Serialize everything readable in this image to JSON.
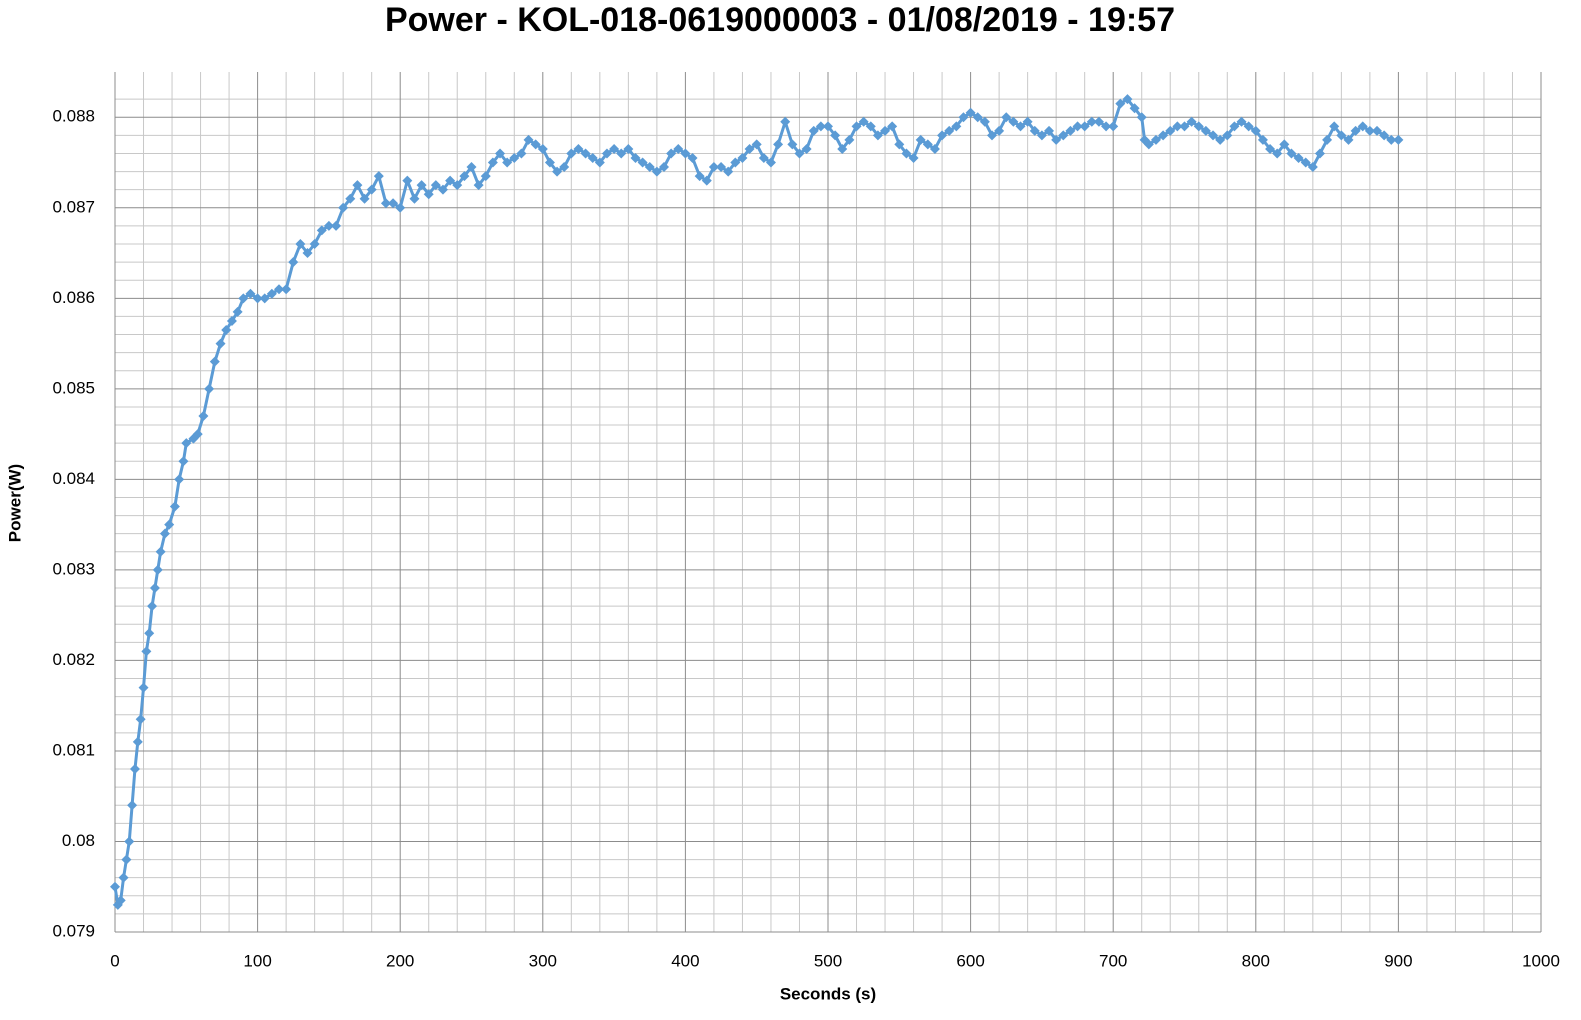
{
  "chart_data": {
    "type": "line",
    "title": "Power - KOL-018-0619000003 - 01/08/2019 - 19:57",
    "x_label": "Seconds (s)",
    "y_label": "Power(W)",
    "xlim": [
      0,
      1000
    ],
    "ylim": [
      0.079,
      0.0885
    ],
    "xticks": [
      0,
      100,
      200,
      300,
      400,
      500,
      600,
      700,
      800,
      900,
      1000
    ],
    "yticks": [
      0.079,
      0.08,
      0.081,
      0.082,
      0.083,
      0.084,
      0.085,
      0.086,
      0.087,
      0.088
    ],
    "grid": true,
    "minor_grid_divisions": 5,
    "marker": "diamond",
    "x": [
      0,
      2,
      4,
      6,
      8,
      10,
      12,
      14,
      16,
      18,
      20,
      22,
      24,
      26,
      28,
      30,
      32,
      35,
      38,
      42,
      45,
      48,
      50,
      55,
      58,
      62,
      66,
      70,
      74,
      78,
      82,
      86,
      90,
      95,
      100,
      105,
      110,
      115,
      120,
      125,
      130,
      135,
      140,
      145,
      150,
      155,
      160,
      165,
      170,
      175,
      180,
      185,
      190,
      195,
      200,
      205,
      210,
      215,
      220,
      225,
      230,
      235,
      240,
      245,
      250,
      255,
      260,
      265,
      270,
      275,
      280,
      285,
      290,
      295,
      300,
      305,
      310,
      315,
      320,
      325,
      330,
      335,
      340,
      345,
      350,
      355,
      360,
      365,
      370,
      375,
      380,
      385,
      390,
      395,
      400,
      405,
      410,
      415,
      420,
      425,
      430,
      435,
      440,
      445,
      450,
      455,
      460,
      465,
      470,
      475,
      480,
      485,
      490,
      495,
      500,
      505,
      510,
      515,
      520,
      525,
      530,
      535,
      540,
      545,
      550,
      555,
      560,
      565,
      570,
      575,
      580,
      585,
      590,
      595,
      600,
      605,
      610,
      615,
      620,
      625,
      630,
      635,
      640,
      645,
      650,
      655,
      660,
      665,
      670,
      675,
      680,
      685,
      690,
      695,
      700,
      705,
      710,
      715,
      720,
      722,
      725,
      730,
      735,
      740,
      745,
      750,
      755,
      760,
      765,
      770,
      775,
      780,
      785,
      790,
      795,
      800,
      805,
      810,
      815,
      820,
      825,
      830,
      835,
      840,
      845,
      850,
      855,
      860,
      865,
      870,
      875,
      880,
      885,
      890,
      895,
      900
    ],
    "series": [
      {
        "name": "Power",
        "color": "#5b9bd5",
        "values": [
          0.0795,
          0.0793,
          0.07935,
          0.0796,
          0.0798,
          0.08,
          0.0804,
          0.0808,
          0.0811,
          0.08135,
          0.0817,
          0.0821,
          0.0823,
          0.0826,
          0.0828,
          0.083,
          0.0832,
          0.0834,
          0.0835,
          0.0837,
          0.084,
          0.0842,
          0.0844,
          0.08445,
          0.0845,
          0.0847,
          0.085,
          0.0853,
          0.0855,
          0.08565,
          0.08575,
          0.08585,
          0.086,
          0.08605,
          0.086,
          0.086,
          0.08605,
          0.0861,
          0.0861,
          0.0864,
          0.0866,
          0.0865,
          0.0866,
          0.08675,
          0.0868,
          0.0868,
          0.087,
          0.0871,
          0.08725,
          0.0871,
          0.0872,
          0.08735,
          0.08705,
          0.08705,
          0.087,
          0.0873,
          0.0871,
          0.08725,
          0.08715,
          0.08725,
          0.0872,
          0.0873,
          0.08725,
          0.08735,
          0.08745,
          0.08725,
          0.08735,
          0.0875,
          0.0876,
          0.0875,
          0.08755,
          0.0876,
          0.08775,
          0.0877,
          0.08765,
          0.0875,
          0.0874,
          0.08745,
          0.0876,
          0.08765,
          0.0876,
          0.08755,
          0.0875,
          0.0876,
          0.08765,
          0.0876,
          0.08765,
          0.08755,
          0.0875,
          0.08745,
          0.0874,
          0.08745,
          0.0876,
          0.08765,
          0.0876,
          0.08755,
          0.08735,
          0.0873,
          0.08745,
          0.08745,
          0.0874,
          0.0875,
          0.08755,
          0.08765,
          0.0877,
          0.08755,
          0.0875,
          0.0877,
          0.08795,
          0.0877,
          0.0876,
          0.08765,
          0.08785,
          0.0879,
          0.0879,
          0.0878,
          0.08765,
          0.08775,
          0.0879,
          0.08795,
          0.0879,
          0.0878,
          0.08785,
          0.0879,
          0.0877,
          0.0876,
          0.08755,
          0.08775,
          0.0877,
          0.08765,
          0.0878,
          0.08785,
          0.0879,
          0.088,
          0.08805,
          0.088,
          0.08795,
          0.0878,
          0.08785,
          0.088,
          0.08795,
          0.0879,
          0.08795,
          0.08785,
          0.0878,
          0.08785,
          0.08775,
          0.0878,
          0.08785,
          0.0879,
          0.0879,
          0.08795,
          0.08795,
          0.0879,
          0.0879,
          0.08815,
          0.0882,
          0.0881,
          0.088,
          0.08775,
          0.0877,
          0.08775,
          0.0878,
          0.08785,
          0.0879,
          0.0879,
          0.08795,
          0.0879,
          0.08785,
          0.0878,
          0.08775,
          0.0878,
          0.0879,
          0.08795,
          0.0879,
          0.08785,
          0.08775,
          0.08765,
          0.0876,
          0.0877,
          0.0876,
          0.08755,
          0.0875,
          0.08745,
          0.0876,
          0.08775,
          0.0879,
          0.0878,
          0.08775,
          0.08785,
          0.0879,
          0.08785,
          0.08785,
          0.0878,
          0.08775,
          0.08775
        ]
      }
    ]
  }
}
